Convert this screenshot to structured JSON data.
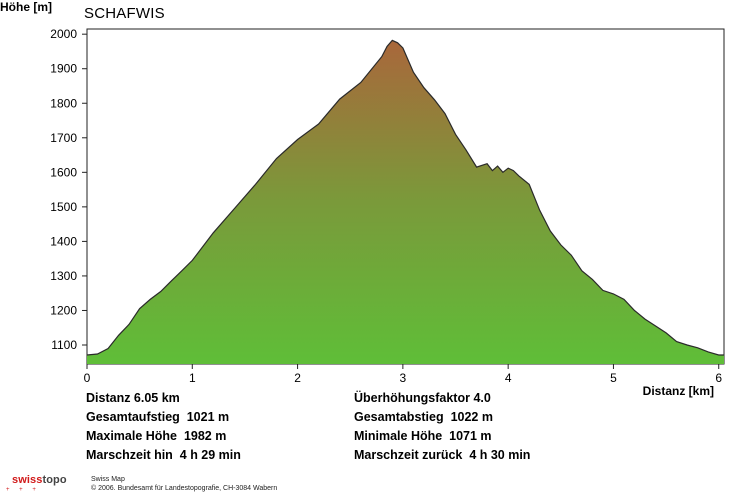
{
  "chart_data": {
    "type": "area",
    "title": "SCHAFWIS",
    "ylabel": "Höhe [m]",
    "xlabel": "Distanz [km]",
    "xlim": [
      0,
      6.05
    ],
    "ylim": [
      1045,
      2015
    ],
    "xticks": [
      0,
      1,
      2,
      3,
      4,
      5,
      6
    ],
    "yticks": [
      1100,
      1200,
      1300,
      1400,
      1500,
      1600,
      1700,
      1800,
      1900,
      2000
    ],
    "grid": false,
    "fill_gradient": {
      "bottom": "#5fbe38",
      "middle": "#7a9a3a",
      "top": "#a9673b"
    },
    "x": [
      0,
      0.1,
      0.2,
      0.3,
      0.4,
      0.5,
      0.6,
      0.7,
      0.8,
      0.9,
      1.0,
      1.2,
      1.4,
      1.6,
      1.8,
      2.0,
      2.2,
      2.4,
      2.6,
      2.8,
      2.85,
      2.9,
      2.95,
      3.0,
      3.1,
      3.2,
      3.3,
      3.4,
      3.5,
      3.6,
      3.7,
      3.8,
      3.85,
      3.9,
      3.95,
      4.0,
      4.05,
      4.1,
      4.2,
      4.3,
      4.4,
      4.5,
      4.6,
      4.7,
      4.8,
      4.9,
      5.0,
      5.1,
      5.2,
      5.3,
      5.4,
      5.5,
      5.6,
      5.7,
      5.8,
      5.9,
      6.0,
      6.05
    ],
    "y": [
      1071,
      1074,
      1090,
      1128,
      1160,
      1205,
      1232,
      1255,
      1285,
      1315,
      1345,
      1425,
      1495,
      1565,
      1640,
      1695,
      1740,
      1812,
      1860,
      1935,
      1965,
      1982,
      1975,
      1960,
      1890,
      1845,
      1810,
      1770,
      1710,
      1665,
      1615,
      1625,
      1605,
      1618,
      1600,
      1612,
      1605,
      1590,
      1565,
      1490,
      1430,
      1390,
      1360,
      1315,
      1290,
      1258,
      1248,
      1232,
      1200,
      1175,
      1155,
      1135,
      1110,
      1100,
      1092,
      1080,
      1071,
      1071
    ]
  },
  "stats": {
    "row1": {
      "left": "Distanz 6.05 km",
      "right": "Überhöhungsfaktor 4.0"
    },
    "row2": {
      "left": "Gesamtaufstieg  1021 m",
      "right": "Gesamtabstieg  1022 m"
    },
    "row3": {
      "left": "Maximale Höhe  1982 m",
      "right": "Minimale Höhe  1071 m"
    },
    "row4": {
      "left": "Marschzeit hin  4 h 29 min",
      "right": "Marschzeit zurück  4 h 30 min"
    }
  },
  "footer": {
    "logo_swiss": "swiss",
    "logo_topo": "topo",
    "logo_marks": "+ + +",
    "line1": "Swiss Map",
    "line2": "© 2006. Bundesamt für Landestopografie, CH-3084 Wabern"
  }
}
